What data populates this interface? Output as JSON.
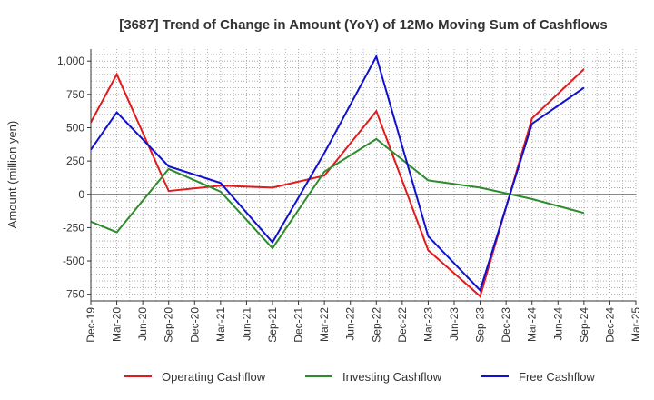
{
  "chart_data": {
    "type": "line",
    "title": "[3687]  Trend of Change in Amount (YoY) of 12Mo Moving Sum of Cashflows",
    "xlabel": "",
    "ylabel": "Amount (million yen)",
    "ylim": [
      -800,
      1090
    ],
    "yticks": [
      -750,
      -500,
      -250,
      0,
      250,
      500,
      750,
      1000
    ],
    "ytick_labels": [
      "-750",
      "-500",
      "-250",
      "0",
      "250",
      "500",
      "750",
      "1,000"
    ],
    "categories": [
      "Dec-19",
      "Mar-20",
      "Jun-20",
      "Sep-20",
      "Dec-20",
      "Mar-21",
      "Jun-21",
      "Sep-21",
      "Dec-21",
      "Mar-22",
      "Jun-22",
      "Sep-22",
      "Dec-22",
      "Mar-23",
      "Jun-23",
      "Sep-23",
      "Dec-23",
      "Mar-24",
      "Jun-24",
      "Sep-24",
      "Dec-24",
      "Mar-25"
    ],
    "grid": true,
    "legend_position": "bottom",
    "series": [
      {
        "name": "Operating Cashflow",
        "color": "#e31a1c",
        "values": [
          540,
          900,
          null,
          25,
          null,
          65,
          null,
          50,
          null,
          140,
          null,
          625,
          null,
          -420,
          null,
          -765,
          null,
          570,
          null,
          940,
          null,
          null
        ]
      },
      {
        "name": "Investing Cashflow",
        "color": "#2e8b2e",
        "values": [
          -205,
          -285,
          null,
          190,
          null,
          20,
          null,
          -405,
          null,
          170,
          null,
          415,
          null,
          105,
          null,
          50,
          null,
          -35,
          null,
          -140,
          null,
          null
        ]
      },
      {
        "name": "Free Cashflow",
        "color": "#1010d0",
        "values": [
          335,
          615,
          null,
          210,
          null,
          85,
          null,
          -360,
          null,
          310,
          null,
          1035,
          null,
          -315,
          null,
          -720,
          null,
          530,
          null,
          800,
          null,
          null
        ]
      }
    ]
  }
}
